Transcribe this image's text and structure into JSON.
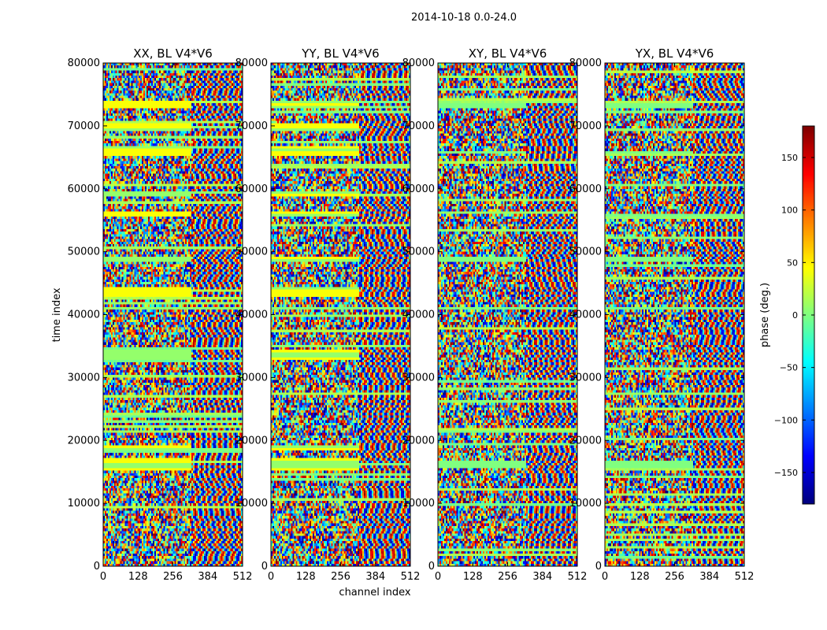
{
  "chart_data": {
    "type": "heatmap",
    "suptitle": "2014-10-18 0.0-24.0",
    "xlabel": "channel index",
    "ylabel": "time index",
    "xlim": [
      0,
      512
    ],
    "ylim": [
      0,
      80000
    ],
    "xticks": [
      "0",
      "128",
      "256",
      "384",
      "512"
    ],
    "yticks": [
      "0",
      "10000",
      "20000",
      "30000",
      "40000",
      "50000",
      "60000",
      "70000",
      "80000"
    ],
    "panels": [
      {
        "title": "XX, BL V4*V6",
        "flag_bands": [
          [
            33000,
            34500
          ],
          [
            43000,
            44200
          ],
          [
            48500,
            49200
          ],
          [
            55500,
            56300
          ],
          [
            58800,
            59400
          ],
          [
            65300,
            66700
          ],
          [
            69300,
            70300
          ],
          [
            72800,
            74000
          ],
          [
            15300,
            17000
          ],
          [
            18500,
            19000
          ]
        ]
      },
      {
        "title": "YY, BL V4*V6",
        "flag_bands": [
          [
            33000,
            34500
          ],
          [
            43000,
            44200
          ],
          [
            48500,
            49200
          ],
          [
            55500,
            56300
          ],
          [
            58800,
            59400
          ],
          [
            65300,
            66700
          ],
          [
            69300,
            70300
          ],
          [
            72800,
            74000
          ],
          [
            15300,
            17000
          ],
          [
            18500,
            19000
          ]
        ]
      },
      {
        "title": "XY, BL V4*V6",
        "flag_bands": [
          [
            15800,
            16600
          ],
          [
            48500,
            49000
          ],
          [
            65500,
            66000
          ],
          [
            73000,
            73600
          ]
        ]
      },
      {
        "title": "YX, BL V4*V6",
        "flag_bands": [
          [
            15800,
            16600
          ],
          [
            48500,
            49000
          ],
          [
            65500,
            66000
          ],
          [
            73000,
            73600
          ]
        ]
      }
    ],
    "colorbar": {
      "label": "phase (deg.)",
      "range": [
        -180,
        180
      ],
      "ticks": [
        "150",
        "100",
        "50",
        "0",
        "−50",
        "−100",
        "−150"
      ],
      "tick_values": [
        150,
        100,
        50,
        0,
        -50,
        -100,
        -150
      ],
      "colormap": "jet"
    }
  }
}
